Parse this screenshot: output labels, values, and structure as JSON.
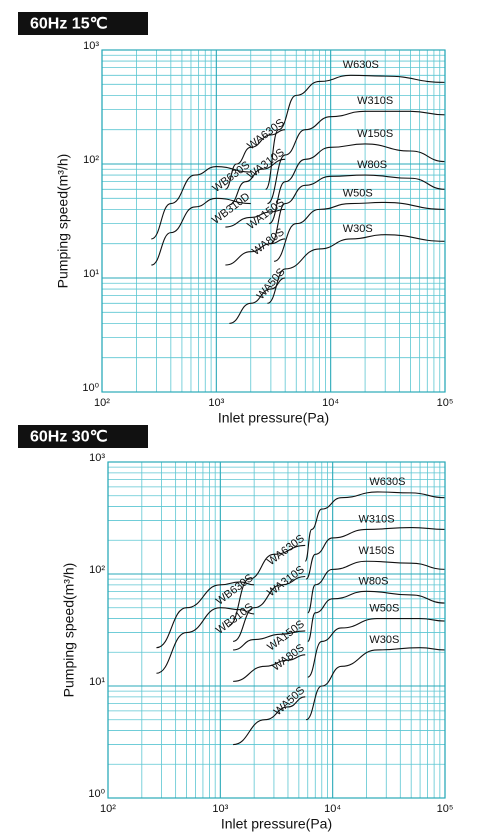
{
  "chart_data": [
    {
      "type": "line",
      "title": "60Hz  15℃",
      "xlabel": "Inlet pressure(Pa)",
      "ylabel": "Pumping speed(m³/h)",
      "xscale": "log",
      "yscale": "log",
      "grid": true,
      "xlim": [
        100,
        100000
      ],
      "ylim": [
        1,
        1000
      ],
      "xticks": [
        {
          "value": 100,
          "label": "10²"
        },
        {
          "value": 1000,
          "label": "10³"
        },
        {
          "value": 10000,
          "label": "10⁴"
        },
        {
          "value": 100000,
          "label": "10⁵"
        }
      ],
      "yticks": [
        {
          "value": 1,
          "label": "10⁰"
        },
        {
          "value": 10,
          "label": "10¹"
        },
        {
          "value": 100,
          "label": "10²"
        },
        {
          "value": 1000,
          "label": "10³"
        }
      ],
      "series": [
        {
          "name": "W630S",
          "color": "#111111",
          "x": [
            2700,
            3500,
            5000,
            8000,
            15000,
            30000,
            100000
          ],
          "values": [
            60,
            200,
            400,
            530,
            600,
            590,
            520
          ]
        },
        {
          "name": "W310S",
          "color": "#111111",
          "x": [
            2800,
            4000,
            6000,
            10000,
            20000,
            50000,
            100000
          ],
          "values": [
            45,
            120,
            200,
            260,
            290,
            290,
            270
          ]
        },
        {
          "name": "W150S",
          "color": "#111111",
          "x": [
            2900,
            4000,
            6000,
            10000,
            20000,
            50000,
            100000
          ],
          "values": [
            30,
            70,
            110,
            140,
            150,
            130,
            105
          ]
        },
        {
          "name": "W80S",
          "color": "#111111",
          "x": [
            3000,
            4000,
            6000,
            10000,
            20000,
            50000,
            100000
          ],
          "values": [
            20,
            45,
            65,
            78,
            80,
            75,
            60
          ]
        },
        {
          "name": "W50S",
          "color": "#111111",
          "x": [
            3200,
            5000,
            8000,
            15000,
            30000,
            100000
          ],
          "values": [
            14,
            30,
            40,
            45,
            46,
            40
          ]
        },
        {
          "name": "W30S",
          "color": "#111111",
          "x": [
            2800,
            4000,
            8000,
            15000,
            30000,
            100000
          ],
          "values": [
            6,
            12,
            18,
            22,
            24,
            21
          ]
        },
        {
          "name": "WA630S",
          "color": "#111111",
          "x": [
            1200,
            1500,
            2000,
            3000,
            4000
          ],
          "values": [
            60,
            100,
            140,
            180,
            200
          ]
        },
        {
          "name": "WA310S",
          "color": "#111111",
          "x": [
            1300,
            1800,
            2500,
            4000
          ],
          "values": [
            44,
            70,
            90,
            110
          ]
        },
        {
          "name": "WA150S",
          "color": "#111111",
          "x": [
            1200,
            2000,
            3000,
            4000
          ],
          "values": [
            28,
            34,
            38,
            40
          ]
        },
        {
          "name": "WA80S",
          "color": "#111111",
          "x": [
            1200,
            2000,
            3000,
            4000
          ],
          "values": [
            13,
            17,
            20,
            22
          ]
        },
        {
          "name": "WA50S",
          "color": "#111111",
          "x": [
            1300,
            2000,
            3000,
            4000
          ],
          "values": [
            4,
            6,
            8,
            10
          ]
        },
        {
          "name": "WB630S",
          "color": "#111111",
          "x": [
            270,
            400,
            650,
            1000,
            2000
          ],
          "values": [
            22,
            45,
            80,
            95,
            85
          ]
        },
        {
          "name": "WB310D",
          "color": "#111111",
          "x": [
            270,
            400,
            650,
            1000,
            2000
          ],
          "values": [
            13,
            25,
            42,
            50,
            45
          ]
        }
      ]
    },
    {
      "type": "line",
      "title": "60Hz  30℃",
      "xlabel": "Inlet pressure(Pa)",
      "ylabel": "Pumping speed(m³/h)",
      "xscale": "log",
      "yscale": "log",
      "grid": true,
      "xlim": [
        100,
        100000
      ],
      "ylim": [
        1,
        1000
      ],
      "xticks": [
        {
          "value": 100,
          "label": "10²"
        },
        {
          "value": 1000,
          "label": "10³"
        },
        {
          "value": 10000,
          "label": "10⁴"
        },
        {
          "value": 100000,
          "label": "10⁵"
        }
      ],
      "yticks": [
        {
          "value": 1,
          "label": "10⁰"
        },
        {
          "value": 10,
          "label": "10¹"
        },
        {
          "value": 100,
          "label": "10²"
        },
        {
          "value": 1000,
          "label": "10³"
        }
      ],
      "series": [
        {
          "name": "W630S",
          "color": "#111111",
          "x": [
            5700,
            6500,
            8000,
            12000,
            25000,
            50000,
            100000
          ],
          "values": [
            130,
            250,
            380,
            480,
            540,
            530,
            480
          ]
        },
        {
          "name": "W310S",
          "color": "#111111",
          "x": [
            5800,
            7000,
            10000,
            20000,
            50000,
            100000
          ],
          "values": [
            90,
            150,
            210,
            250,
            260,
            250
          ]
        },
        {
          "name": "W150S",
          "color": "#111111",
          "x": [
            6000,
            7000,
            10000,
            20000,
            50000,
            100000
          ],
          "values": [
            45,
            80,
            110,
            130,
            125,
            110
          ]
        },
        {
          "name": "W80S",
          "color": "#111111",
          "x": [
            6000,
            7000,
            10000,
            20000,
            50000,
            100000
          ],
          "values": [
            25,
            45,
            60,
            70,
            65,
            55
          ]
        },
        {
          "name": "W50S",
          "color": "#111111",
          "x": [
            6000,
            8000,
            12000,
            25000,
            60000,
            100000
          ],
          "values": [
            12,
            25,
            33,
            40,
            40,
            38
          ]
        },
        {
          "name": "W30S",
          "color": "#111111",
          "x": [
            5800,
            8000,
            12000,
            25000,
            60000,
            100000
          ],
          "values": [
            5,
            10,
            15,
            21,
            22,
            21
          ]
        },
        {
          "name": "WA630S",
          "color": "#111111",
          "x": [
            1200,
            1800,
            3000,
            5700
          ],
          "values": [
            35,
            90,
            150,
            180
          ]
        },
        {
          "name": "WA310S",
          "color": "#111111",
          "x": [
            1300,
            2000,
            3500,
            5700
          ],
          "values": [
            25,
            50,
            80,
            95
          ]
        },
        {
          "name": "WA150S",
          "color": "#111111",
          "x": [
            1300,
            2000,
            3500,
            5700
          ],
          "values": [
            21,
            26,
            29,
            31
          ]
        },
        {
          "name": "WA80S",
          "color": "#111111",
          "x": [
            1300,
            2500,
            4000,
            5700
          ],
          "values": [
            11,
            15,
            17,
            19
          ]
        },
        {
          "name": "WA50S",
          "color": "#111111",
          "x": [
            1300,
            2500,
            4000,
            5700
          ],
          "values": [
            3,
            5,
            6.5,
            8
          ]
        },
        {
          "name": "WB630S",
          "color": "#111111",
          "x": [
            270,
            500,
            1000,
            1500,
            2000
          ],
          "values": [
            22,
            50,
            80,
            85,
            80
          ]
        },
        {
          "name": "WB310S",
          "color": "#111111",
          "x": [
            270,
            500,
            1000,
            1500,
            2000
          ],
          "values": [
            13,
            30,
            50,
            48,
            44
          ]
        }
      ]
    }
  ]
}
